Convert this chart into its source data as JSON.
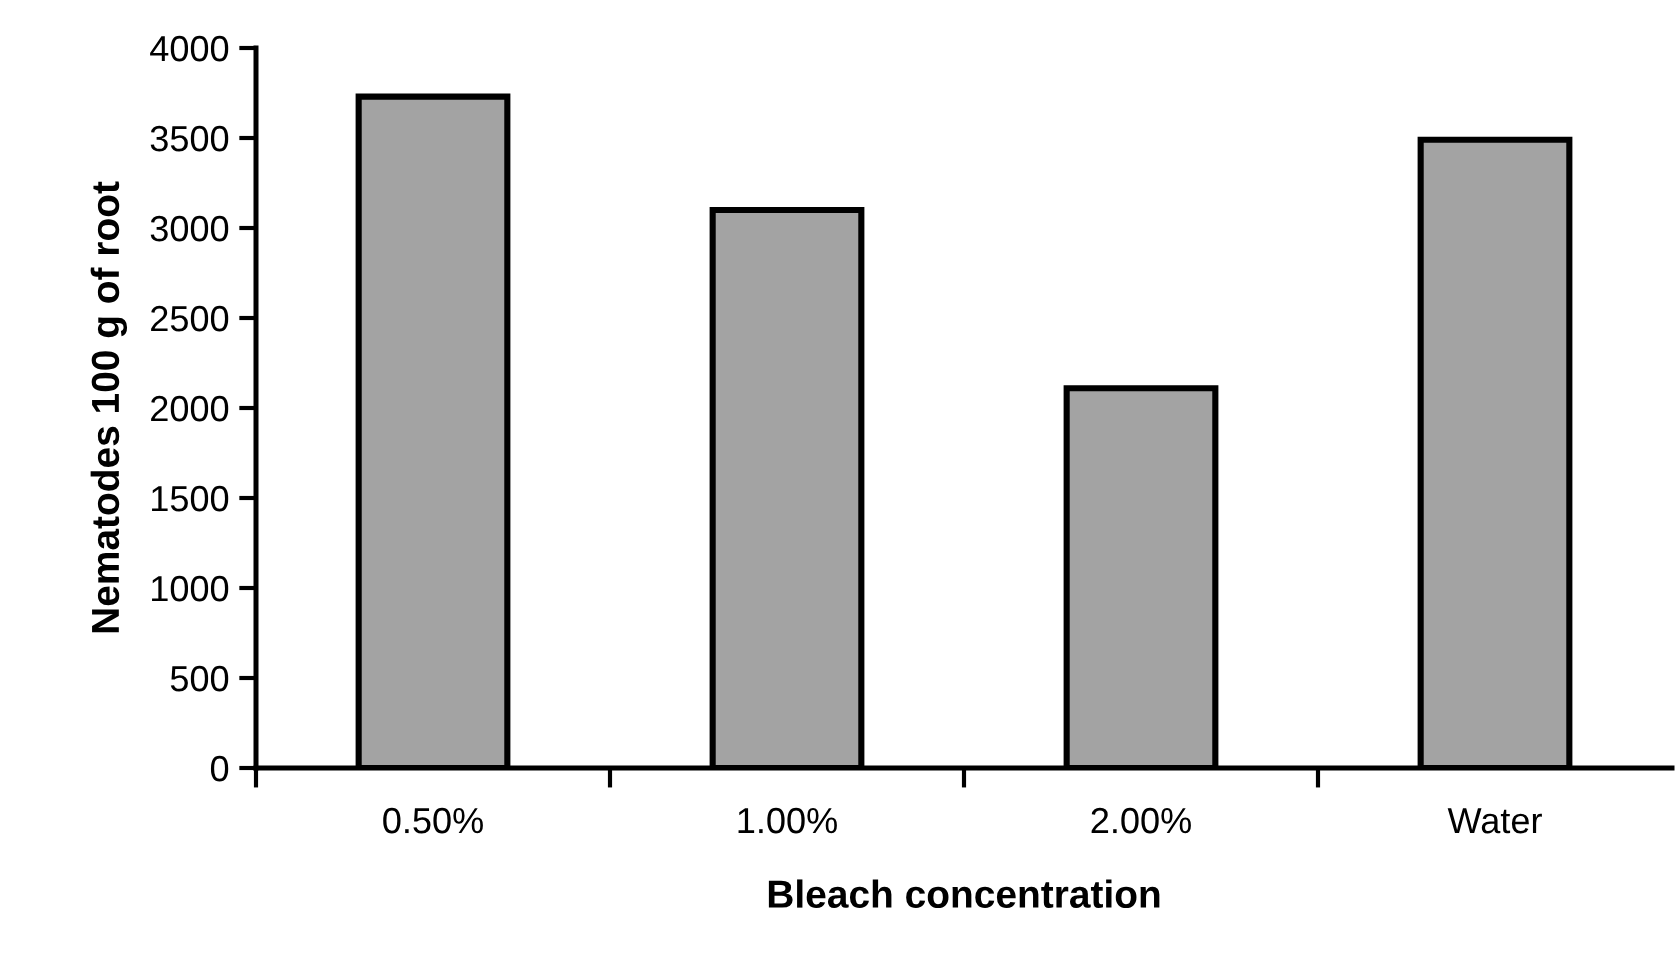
{
  "chart_data": {
    "type": "bar",
    "xlabel": "Bleach concentration",
    "ylabel": "Nematodes 100 g of root",
    "categories": [
      "0.50%",
      "1.00%",
      "2.00%",
      "Water"
    ],
    "values": [
      3730,
      3100,
      2110,
      3490
    ],
    "color": "#a3a3a3",
    "ylim": [
      0,
      4000
    ],
    "yticks": [
      0,
      500,
      1000,
      1500,
      2000,
      2500,
      3000,
      3500,
      4000
    ],
    "grid": false,
    "legend": false
  }
}
